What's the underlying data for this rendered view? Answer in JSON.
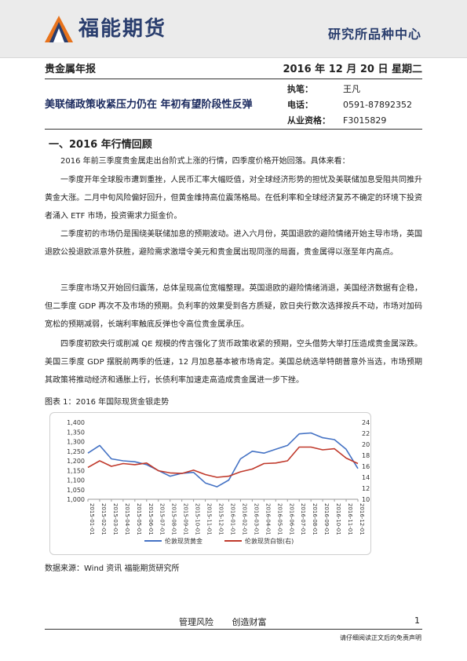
{
  "header": {
    "brand": "福能期货",
    "center": "研究所品种中心"
  },
  "report": {
    "type": "贵金属年报",
    "date": "2016 年 12 月 20 日  星期二"
  },
  "headline": "美联储政策收紧压力仍在 年初有望阶段性反弹",
  "meta": [
    {
      "key": "执笔：",
      "value": "王凡"
    },
    {
      "key": "电话：",
      "value": "0591-87892352"
    },
    {
      "key": "从业资格：",
      "value": "F3015829"
    }
  ],
  "section_title": "一、2016 年行情回顾",
  "paragraphs": [
    "2016 年前三季度贵金属走出台阶式上涨的行情，四季度价格开始回落。具体来看：",
    "一季度开年全球股市遭到重挫，人民币汇率大幅贬值，对全球经济形势的担忧及美联储加息受阻共同推升黄金大涨。二月中旬风险偏好回升，但黄金维持高位震荡格局。在低利率和全球经济复苏不确定的环境下投资者涌入 ETF 市场，投资需求力挺金价。",
    "二季度初的市场仍是围绕美联储加息的预期波动。进入六月份，英国退欧的避险情绪开始主导市场，英国退欧公投退欧派意外获胜，避险需求激增令美元和贵金属出现同涨的局面，贵金属得以涨至年内高点。",
    "三季度市场又开始回归震荡，总体呈现高位宽幅整理。英国退欧的避险情绪消退，美国经济数据有企稳，但二季度 GDP 再次不及市场的预期。负利率的效果受到各方质疑，欧日央行数次选择按兵不动，市场对加码宽松的预期减弱，长端利率触底反弹也令高位贵金属承压。",
    "四季度初欧央行或削减 QE 规模的传言强化了货币政策收紧的预期，空头借势大举打压造成贵金属深跌。美国三季度 GDP 摆脱前两季的低速，12 月加息基本被市场肯定。美国总统选举特朗普意外当选，市场预期其政策将推动经济和通胀上行，长债利率加速走高造成贵金属进一步下挫。"
  ],
  "figure_caption": "图表 1：2016 年国际现货金银走势",
  "source": "数据来源：Wind 资讯  福能期货研究所",
  "footer": {
    "left": "管理风险",
    "right": "创造财富",
    "page": "1"
  },
  "disclaimer": "请仔细阅读正文后的免责声明",
  "colors": {
    "brand": "#2a3e6e",
    "gold": "#4472c4",
    "silver": "#c0392b",
    "logo_orange": "#e8731c"
  },
  "chart_data": {
    "type": "line",
    "title": "",
    "x": [
      "2015-01-01",
      "2015-02-01",
      "2015-03-01",
      "2015-04-01",
      "2015-05-01",
      "2015-06-01",
      "2015-07-01",
      "2015-08-01",
      "2015-09-01",
      "2015-10-01",
      "2015-11-01",
      "2015-12-01",
      "2016-01-01",
      "2016-02-01",
      "2016-03-01",
      "2016-04-01",
      "2016-05-01",
      "2016-06-01",
      "2016-07-01",
      "2016-08-01",
      "2016-09-01",
      "2016-10-01",
      "2016-11-01",
      "2016-12-01"
    ],
    "x_tick_labels": [
      "2015-01-01",
      "2015-02-01",
      "2015-03-01",
      "2015-04-01",
      "2015-05-01",
      "2015-06-01",
      "2015-07-01",
      "2015-08-01",
      "2015-09-01",
      "2015-10-01",
      "2015-11-01",
      "2015-12-01",
      "2016-01-01",
      "2016-02-01",
      "2016-03-01",
      "2016-04-01",
      "2016-05-01",
      "2016-06-01",
      "2016-07-01",
      "2016-08-01",
      "2016-09-01",
      "2016-10-01",
      "2016-11-01",
      "2016-12-01"
    ],
    "y_left": {
      "ylim": [
        1000,
        1400
      ],
      "ticks": [
        "1,000",
        "1,050",
        "1,100",
        "1,150",
        "1,200",
        "1,250",
        "1,300",
        "1,350",
        "1,400"
      ]
    },
    "y_right": {
      "ylim": [
        10,
        24
      ],
      "ticks": [
        "10",
        "12",
        "14",
        "16",
        "18",
        "20",
        "22",
        "24"
      ]
    },
    "series": [
      {
        "name": "伦敦现货黄金",
        "axis": "left",
        "color": "#4472c4",
        "values": [
          1240,
          1280,
          1210,
          1200,
          1195,
          1180,
          1150,
          1120,
          1135,
          1140,
          1085,
          1065,
          1100,
          1210,
          1250,
          1240,
          1260,
          1280,
          1340,
          1345,
          1320,
          1310,
          1260,
          1160
        ]
      },
      {
        "name": "伦敦现货白银(右)",
        "axis": "right",
        "color": "#c0392b",
        "values": [
          15.8,
          17.0,
          16.0,
          16.5,
          16.3,
          16.6,
          15.2,
          14.8,
          14.7,
          15.3,
          14.5,
          14.0,
          14.2,
          15.0,
          15.5,
          16.5,
          16.6,
          17.0,
          19.5,
          19.5,
          19.0,
          19.2,
          17.5,
          16.5
        ]
      }
    ],
    "legend_position": "bottom",
    "grid": false
  }
}
